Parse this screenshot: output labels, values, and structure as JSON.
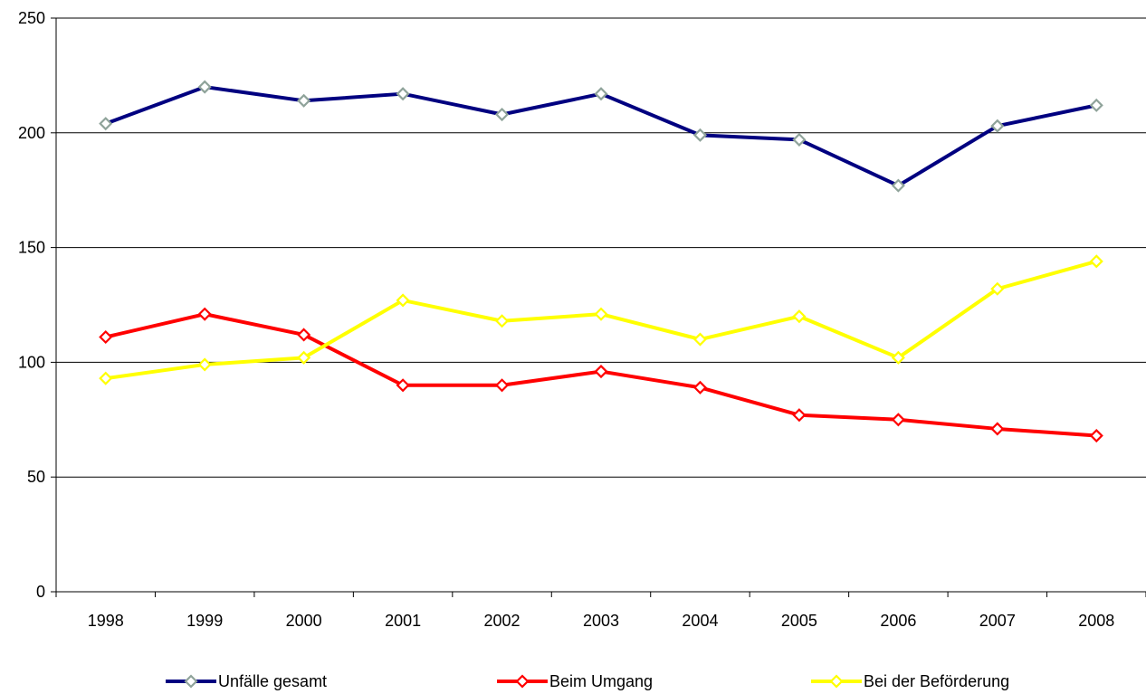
{
  "chart_data": {
    "type": "line",
    "categories": [
      "1998",
      "1999",
      "2000",
      "2001",
      "2002",
      "2003",
      "2004",
      "2005",
      "2006",
      "2007",
      "2008"
    ],
    "ylim": [
      0,
      250
    ],
    "yticks": [
      0,
      50,
      100,
      150,
      200,
      250
    ],
    "grid": true,
    "legend_position": "bottom",
    "series": [
      {
        "name": "Unfälle gesamt",
        "color": "#000080",
        "marker_color": "#8FA39A",
        "values": [
          204,
          220,
          214,
          217,
          208,
          217,
          199,
          197,
          177,
          203,
          212
        ]
      },
      {
        "name": "Beim Umgang",
        "color": "#FF0000",
        "marker_color": "#FF0000",
        "values": [
          111,
          121,
          112,
          90,
          90,
          96,
          89,
          77,
          75,
          71,
          68
        ]
      },
      {
        "name": "Bei der Beförderung",
        "color": "#FFFF00",
        "marker_color": "#FFFF00",
        "values": [
          93,
          99,
          102,
          127,
          118,
          121,
          110,
          120,
          102,
          132,
          144
        ]
      }
    ]
  }
}
